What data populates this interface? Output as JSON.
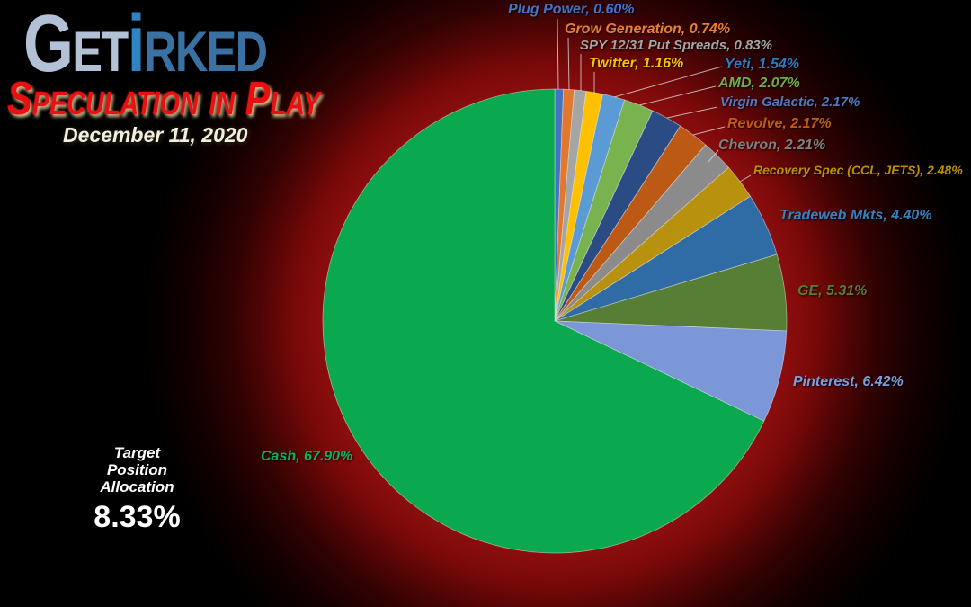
{
  "header": {
    "logo": {
      "get": "Get",
      "i": "i",
      "rked": "rked"
    },
    "tagline": "Speculation in Play",
    "date": "December 11, 2020"
  },
  "target_block": {
    "line1": "Target",
    "line2": "Position",
    "line3": "Allocation",
    "value": "8.33%"
  },
  "chart_data": {
    "type": "pie",
    "title": "Speculation in Play",
    "date": "December 11, 2020",
    "unit": "%",
    "total": 100,
    "start_angle_deg": 0,
    "direction": "clockwise",
    "slices": [
      {
        "name": "Plug Power",
        "value": 0.6,
        "label": "Plug Power, 0.60%",
        "color": "#4472C4",
        "label_color": "#4472C4"
      },
      {
        "name": "Grow Generation",
        "value": 0.74,
        "label": "Grow Generation, 0.74%",
        "color": "#E2772D",
        "label_color": "#ED7D31"
      },
      {
        "name": "SPY 12/31 Put Spreads",
        "value": 0.83,
        "label": "SPY 12/31 Put Spreads, 0.83%",
        "color": "#A5A5A5",
        "label_color": "#A5A5A5"
      },
      {
        "name": "Twitter",
        "value": 1.16,
        "label": "Twitter, 1.16%",
        "color": "#FFC000",
        "label_color": "#FFC000"
      },
      {
        "name": "Yeti",
        "value": 1.54,
        "label": "Yeti, 1.54%",
        "color": "#5B9BD5",
        "label_color": "#2F7BC3"
      },
      {
        "name": "AMD",
        "value": 2.07,
        "label": "AMD, 2.07%",
        "color": "#79B350",
        "label_color": "#70AD47"
      },
      {
        "name": "Virgin Galactic",
        "value": 2.17,
        "label": "Virgin Galactic, 2.17%",
        "color": "#2B4B85",
        "label_color": "#5577BE"
      },
      {
        "name": "Revolve",
        "value": 2.17,
        "label": "Revolve, 2.17%",
        "color": "#BC5A15",
        "label_color": "#C55A11"
      },
      {
        "name": "Chevron",
        "value": 2.21,
        "label": "Chevron, 2.21%",
        "color": "#8B8B8B",
        "label_color": "#808080"
      },
      {
        "name": "Recovery Spec (CCL, JETS)",
        "value": 2.48,
        "label": "Recovery Spec (CCL, JETS), 2.48%",
        "color": "#B8920E",
        "label_color": "#BF9000"
      },
      {
        "name": "Tradeweb Mkts",
        "value": 4.4,
        "label": "Tradeweb Mkts, 4.40%",
        "color": "#2F6BA5",
        "label_color": "#3680C0"
      },
      {
        "name": "GE",
        "value": 5.31,
        "label": "GE, 5.31%",
        "color": "#567F35",
        "label_color": "#5D7D33"
      },
      {
        "name": "Pinterest",
        "value": 6.42,
        "label": "Pinterest, 6.42%",
        "color": "#7B97D8",
        "label_color": "#7C9FDC"
      },
      {
        "name": "Cash",
        "value": 67.9,
        "label": "Cash, 67.90%",
        "color": "#0AA84F",
        "label_color": "#00B956"
      }
    ]
  }
}
